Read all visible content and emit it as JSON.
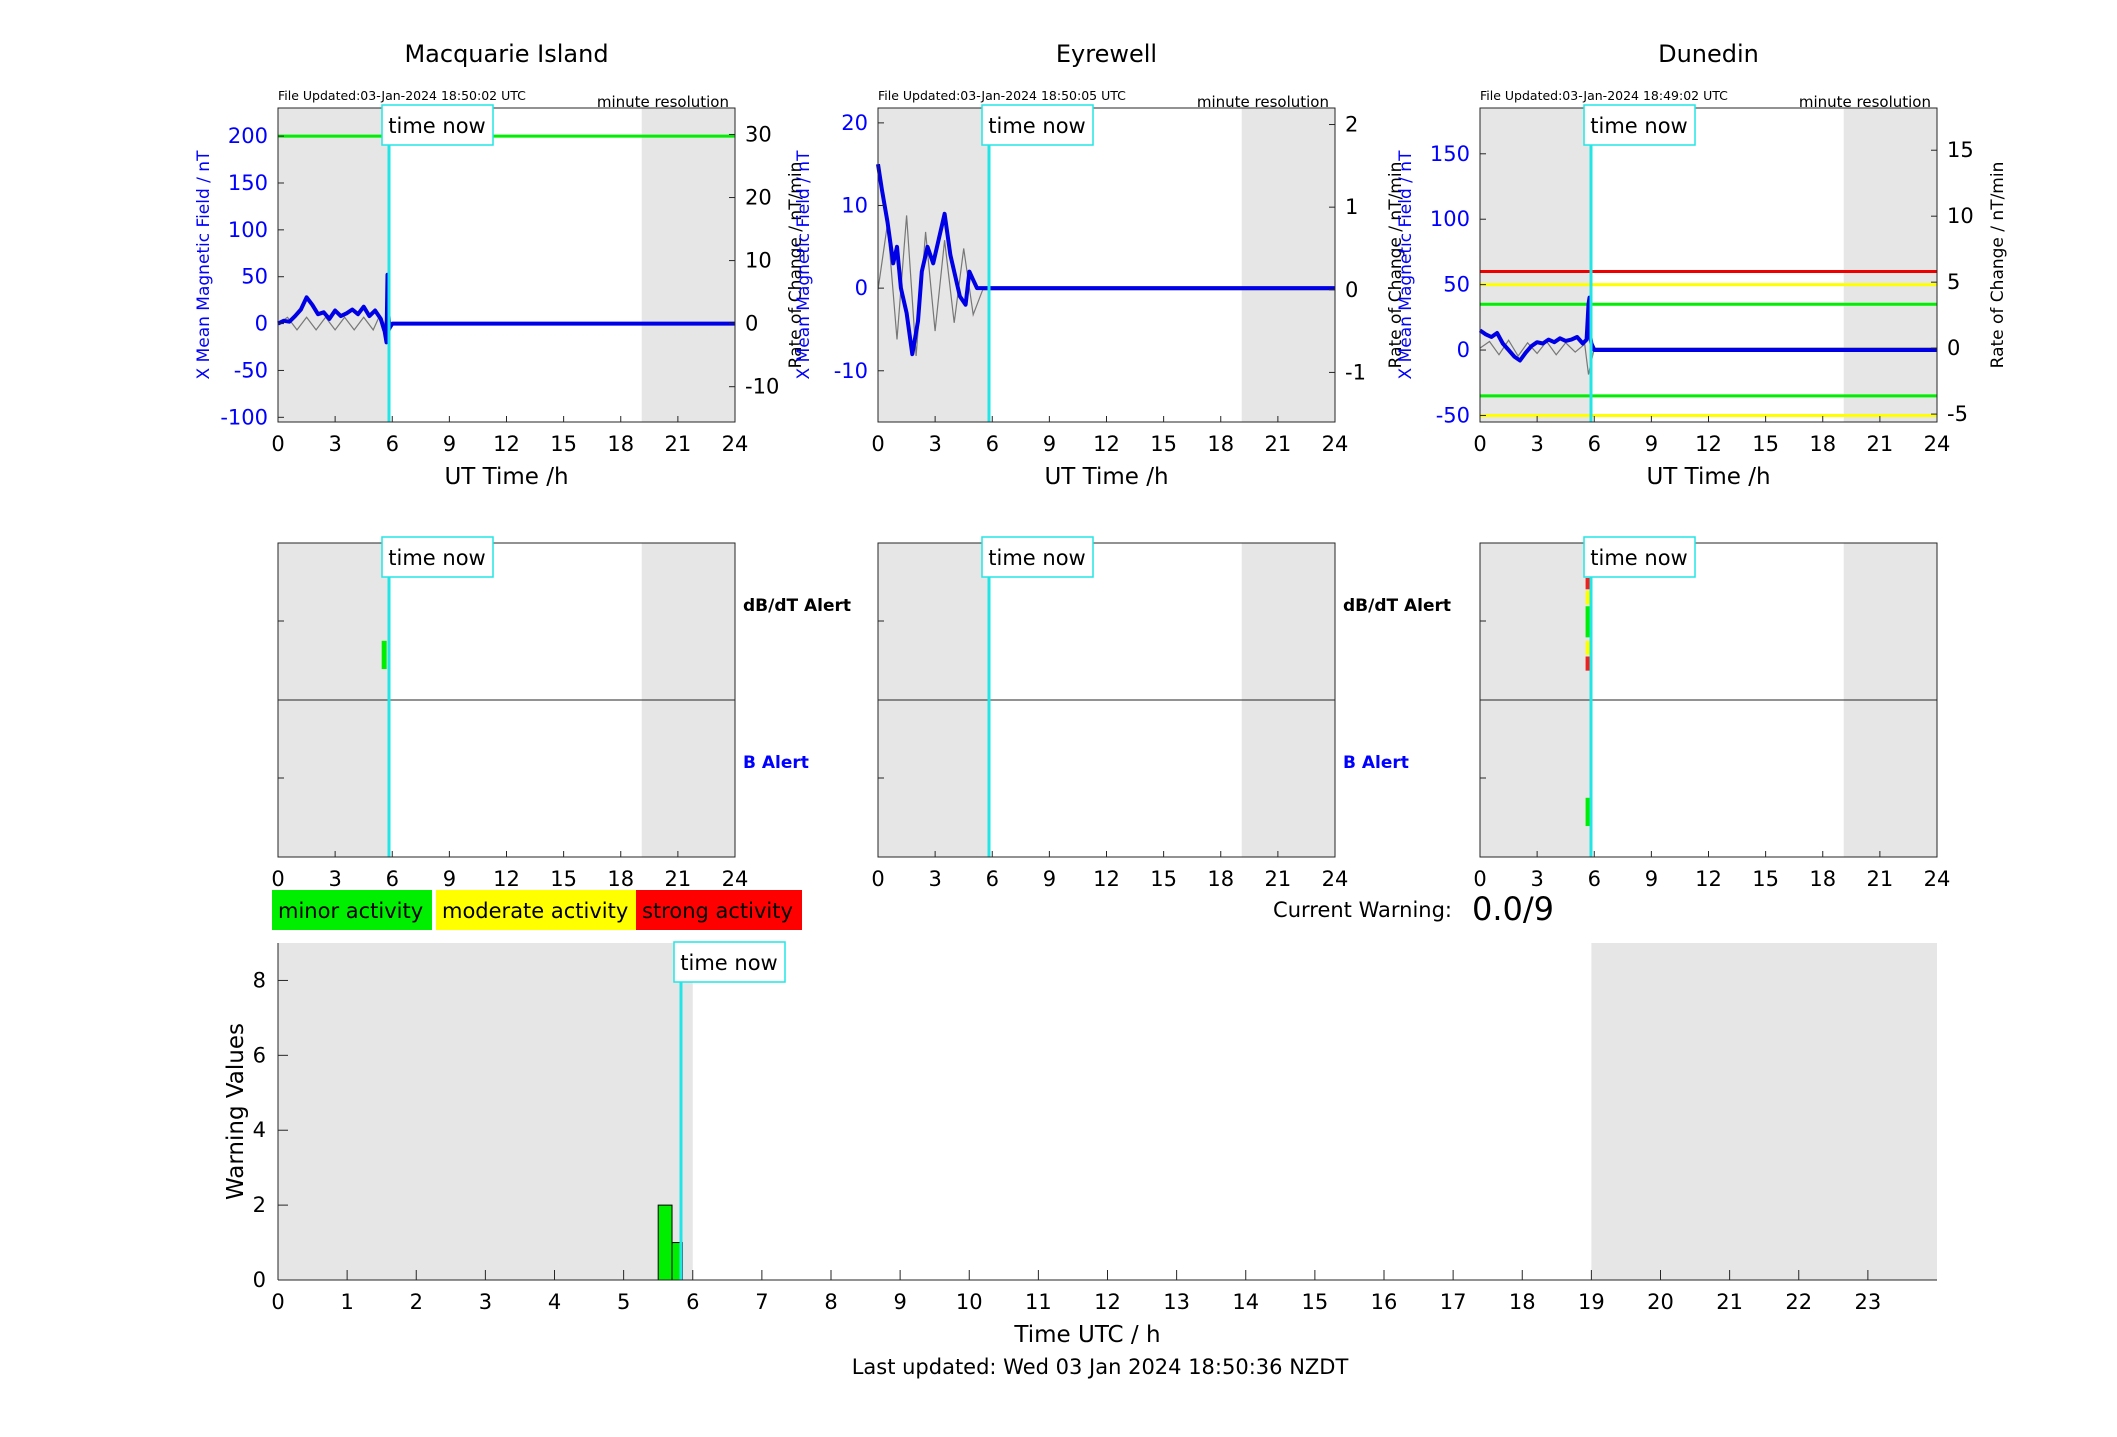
{
  "chart_data": {
    "type": "line",
    "grid": false,
    "stations": [
      {
        "name": "Macquarie Island",
        "file_updated": "File Updated:03-Jan-2024 18:50:02 UTC",
        "resolution": "minute resolution",
        "time_now_label": "time now",
        "time_now": 5.83,
        "night_shading": [
          [
            0,
            5.9
          ],
          [
            19.1,
            24
          ]
        ],
        "xlabel": "UT Time /h",
        "ylabel_left": "X Mean Magnetic Field / nT",
        "ylabel_right": "Rate of Change / nT/min",
        "xlim": [
          0,
          24
        ],
        "ylim_left": [
          -105,
          230
        ],
        "yticks_left": [
          -100,
          -50,
          0,
          50,
          100,
          150,
          200
        ],
        "ylim_right": [
          -15.6,
          34.2
        ],
        "yticks_right": [
          -10,
          0,
          10,
          20,
          30
        ],
        "xticks": [
          0,
          3,
          6,
          9,
          12,
          15,
          18,
          21,
          24
        ],
        "thresholds": [
          {
            "value": 200,
            "color": "#00ee00"
          }
        ],
        "mean_field": {
          "x": [
            0,
            0.3,
            0.6,
            0.9,
            1.2,
            1.5,
            1.8,
            2.1,
            2.4,
            2.7,
            3.0,
            3.3,
            3.6,
            3.9,
            4.2,
            4.5,
            4.8,
            5.1,
            5.4,
            5.6,
            5.7,
            5.75,
            5.8,
            5.85,
            6,
            24
          ],
          "y": [
            0,
            3,
            2,
            8,
            15,
            28,
            20,
            10,
            12,
            5,
            14,
            8,
            11,
            15,
            10,
            18,
            8,
            14,
            5,
            -8,
            -20,
            52,
            10,
            -5,
            0,
            0
          ]
        },
        "rate_of_change": {
          "x": [
            0,
            0.5,
            1,
            1.5,
            2,
            2.5,
            3,
            3.5,
            4,
            4.5,
            5,
            5.3,
            5.5,
            5.7,
            5.8,
            6,
            24
          ],
          "y": [
            0,
            1,
            -1,
            1,
            -1,
            1,
            -1,
            1,
            -1,
            1,
            -1,
            1,
            -1,
            1,
            -2,
            0,
            0
          ]
        }
      },
      {
        "name": "Eyrewell",
        "file_updated": "File Updated:03-Jan-2024 18:50:05 UTC",
        "resolution": "minute resolution",
        "time_now_label": "time now",
        "time_now": 5.83,
        "night_shading": [
          [
            0,
            5.9
          ],
          [
            19.1,
            24
          ]
        ],
        "xlabel": "UT Time /h",
        "ylabel_left": "X Mean Magnetic Field / nT",
        "ylabel_right": "Rate of Change / nT/min",
        "xlim": [
          0,
          24
        ],
        "ylim_left": [
          -16.2,
          21.8
        ],
        "yticks_left": [
          -10,
          0,
          10,
          20
        ],
        "ylim_right": [
          -1.6,
          2.2
        ],
        "yticks_right": [
          -1,
          0,
          1,
          2
        ],
        "xticks": [
          0,
          3,
          6,
          9,
          12,
          15,
          18,
          21,
          24
        ],
        "thresholds": [],
        "mean_field": {
          "x": [
            0,
            0.2,
            0.5,
            0.8,
            1.0,
            1.2,
            1.5,
            1.8,
            2.1,
            2.3,
            2.6,
            2.9,
            3.2,
            3.5,
            3.8,
            4.0,
            4.3,
            4.6,
            4.8,
            5.0,
            5.2,
            5.6,
            5.8,
            6,
            24
          ],
          "y": [
            15,
            12,
            8,
            3,
            5,
            0,
            -3,
            -8,
            -4,
            2,
            5,
            3,
            6,
            9,
            4,
            2,
            -1,
            -2,
            2,
            1,
            0,
            0,
            0,
            0,
            0
          ]
        },
        "rate_of_change": {
          "x": [
            0,
            0.5,
            1,
            1.5,
            2,
            2.5,
            3,
            3.5,
            4,
            4.5,
            5,
            5.5,
            6,
            24
          ],
          "y": [
            0,
            0.8,
            -0.6,
            0.9,
            -0.8,
            0.7,
            -0.5,
            0.6,
            -0.4,
            0.5,
            -0.3,
            0,
            0,
            0
          ]
        }
      },
      {
        "name": "Dunedin",
        "file_updated": "File Updated:03-Jan-2024 18:49:02 UTC",
        "resolution": "minute resolution",
        "time_now_label": "time now",
        "time_now": 5.83,
        "night_shading": [
          [
            0,
            5.9
          ],
          [
            19.1,
            24
          ]
        ],
        "xlabel": "UT Time /h",
        "ylabel_left": "X Mean Magnetic Field / nT",
        "ylabel_right": "Rate of Change / nT/min",
        "xlim": [
          0,
          24
        ],
        "ylim_left": [
          -55,
          185
        ],
        "yticks_left": [
          -50,
          0,
          50,
          100,
          150
        ],
        "ylim_right": [
          -5.6,
          18.2
        ],
        "yticks_right": [
          -5,
          0,
          5,
          10,
          15
        ],
        "xticks": [
          0,
          3,
          6,
          9,
          12,
          15,
          18,
          21,
          24
        ],
        "thresholds": [
          {
            "value": 60,
            "color": "#ee0000"
          },
          {
            "value": 50,
            "color": "#ffff00"
          },
          {
            "value": 35,
            "color": "#00ee00"
          },
          {
            "value": -35,
            "color": "#00ee00"
          },
          {
            "value": -50,
            "color": "#ffff00"
          }
        ],
        "mean_field": {
          "x": [
            0,
            0.3,
            0.6,
            0.9,
            1.2,
            1.5,
            1.8,
            2.1,
            2.4,
            2.7,
            3.0,
            3.3,
            3.6,
            3.9,
            4.2,
            4.5,
            4.8,
            5.1,
            5.4,
            5.6,
            5.7,
            5.75,
            5.8,
            5.85,
            6,
            24
          ],
          "y": [
            15,
            12,
            10,
            13,
            5,
            0,
            -5,
            -8,
            -2,
            3,
            6,
            5,
            8,
            6,
            9,
            7,
            8,
            10,
            5,
            8,
            35,
            40,
            10,
            5,
            0,
            0
          ]
        },
        "rate_of_change": {
          "x": [
            0,
            0.5,
            1,
            1.5,
            2,
            2.5,
            3,
            3.5,
            4,
            4.5,
            5,
            5.5,
            5.7,
            6,
            24
          ],
          "y": [
            0,
            0.5,
            -0.5,
            0.6,
            -0.6,
            0.4,
            -0.4,
            0.5,
            -0.5,
            0.4,
            -0.3,
            0.3,
            -2,
            0,
            0
          ]
        }
      }
    ],
    "alerts": [
      {
        "station": "Macquarie Island",
        "dbdt_label": "dB/dT Alert",
        "b_label": "B Alert",
        "time_now_label": "time now",
        "xticks": [
          0,
          3,
          6,
          9,
          12,
          15,
          18,
          21,
          24
        ],
        "dbdt_segments": [
          {
            "t": 5.55,
            "from": 0.4,
            "to": 0.6,
            "color": "#00ee00"
          }
        ],
        "b_segments": []
      },
      {
        "station": "Eyrewell",
        "dbdt_label": "dB/dT Alert",
        "b_label": "B Alert",
        "time_now_label": "time now",
        "xticks": [
          0,
          3,
          6,
          9,
          12,
          15,
          18,
          21,
          24
        ],
        "dbdt_segments": [],
        "b_segments": []
      },
      {
        "station": "Dunedin",
        "dbdt_label": "dB/dT Alert",
        "b_label": "B Alert",
        "time_now_label": "time now",
        "xticks": [
          0,
          3,
          6,
          9,
          12,
          15,
          18,
          21,
          24
        ],
        "dbdt_segments": [
          {
            "t": 5.65,
            "from": 0.0,
            "to": 0.08,
            "color": "#ee2020"
          },
          {
            "t": 5.65,
            "from": 0.08,
            "to": 0.18,
            "color": "#ffff00"
          },
          {
            "t": 5.65,
            "from": 0.18,
            "to": 0.4,
            "color": "#00ee00"
          },
          {
            "t": 5.65,
            "from": 0.4,
            "to": 0.5,
            "color": "#ffff00"
          },
          {
            "t": 5.65,
            "from": 0.5,
            "to": 0.6,
            "color": "#ee2020"
          }
        ],
        "b_segments": [
          {
            "t": 5.65,
            "from": 0.4,
            "to": 0.6,
            "color": "#00ee00"
          }
        ]
      }
    ],
    "legend": [
      {
        "label": "minor activity",
        "color": "#00ee00"
      },
      {
        "label": "moderate activity",
        "color": "#ffff00"
      },
      {
        "label": "strong activity",
        "color": "#ff0000"
      }
    ],
    "current_warning_label": "Current Warning:",
    "current_warning_value": "0.0/9",
    "warning": {
      "type": "bar",
      "xlabel": "Time UTC / h",
      "ylabel": "Warning Values",
      "xlim": [
        0,
        24
      ],
      "ylim": [
        0,
        9
      ],
      "xticks": [
        0,
        1,
        2,
        3,
        4,
        5,
        6,
        7,
        8,
        9,
        10,
        11,
        12,
        13,
        14,
        15,
        16,
        17,
        18,
        19,
        20,
        21,
        22,
        23
      ],
      "yticks": [
        0,
        2,
        4,
        6,
        8
      ],
      "time_now_label": "time now",
      "time_now": 5.83,
      "night_shading": [
        [
          0,
          6.0
        ],
        [
          19.0,
          24
        ]
      ],
      "bars": [
        {
          "start": 5.5,
          "end": 5.7,
          "value": 2,
          "color": "#00ee00"
        },
        {
          "start": 5.7,
          "end": 5.85,
          "value": 1,
          "color": "#00ee00"
        }
      ]
    },
    "footer": "Last updated: Wed 03 Jan 2024 18:50:36 NZDT"
  }
}
